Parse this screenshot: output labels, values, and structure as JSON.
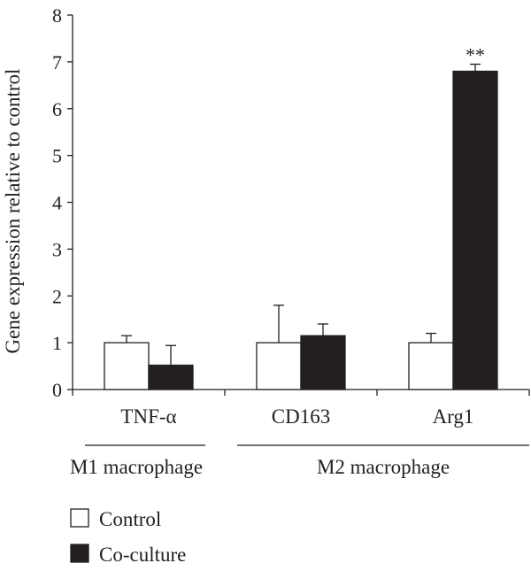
{
  "chart_data": {
    "type": "bar",
    "title": "",
    "xlabel": "",
    "ylabel": "Gene expression relative to control",
    "ylim": [
      0,
      8
    ],
    "yticks": [
      "0",
      "1",
      "2",
      "3",
      "4",
      "5",
      "6",
      "7",
      "8"
    ],
    "categories": [
      "TNF-α",
      "CD163",
      "Arg1"
    ],
    "series": [
      {
        "name": "Control",
        "values": [
          1.0,
          1.0,
          1.0
        ],
        "errors": [
          0.15,
          0.8,
          0.2
        ],
        "color": "#ffffff"
      },
      {
        "name": "Co-culture",
        "values": [
          0.52,
          1.15,
          6.8
        ],
        "errors": [
          0.42,
          0.25,
          0.15
        ],
        "color": "#231f20"
      }
    ],
    "annotations": [
      {
        "category": "Arg1",
        "series": "Co-culture",
        "text": "**"
      }
    ],
    "groups": [
      {
        "label": "M1 macrophage",
        "categories": [
          "TNF-α"
        ]
      },
      {
        "label": "M2 macrophage",
        "categories": [
          "CD163",
          "Arg1"
        ]
      }
    ],
    "legend": {
      "placement": "bottom-left",
      "entries": [
        "Control",
        "Co-culture"
      ]
    },
    "grid": false
  }
}
